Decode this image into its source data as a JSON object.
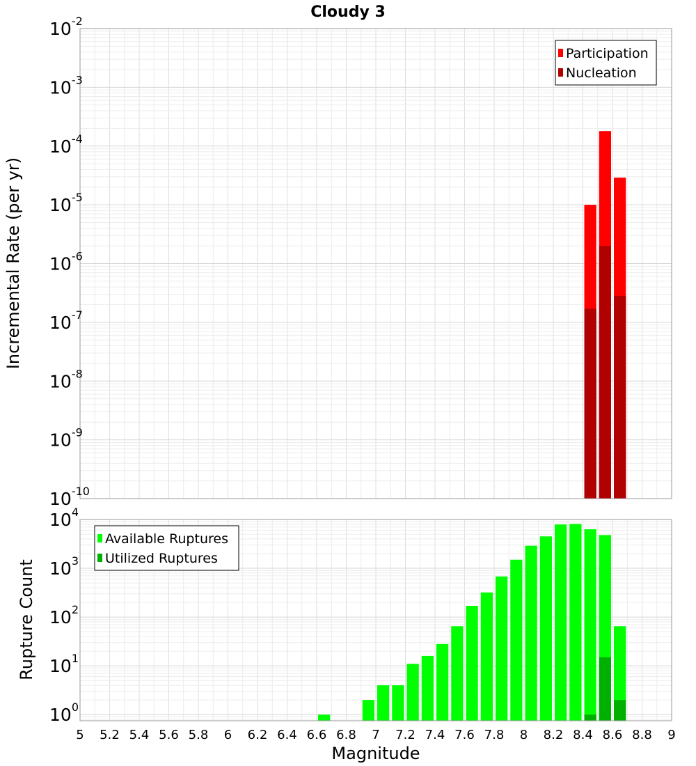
{
  "chart_data": [
    {
      "type": "bar",
      "title": "Cloudy 3",
      "xlabel": "Magnitude",
      "ylabel": "Incremental Rate (per yr)",
      "yscale": "log",
      "xlim": [
        5,
        9
      ],
      "ylim": [
        1e-10,
        0.01
      ],
      "y_ticks": [
        {
          "base": "10",
          "exp": "-10"
        },
        {
          "base": "10",
          "exp": "-9"
        },
        {
          "base": "10",
          "exp": "-8"
        },
        {
          "base": "10",
          "exp": "-7"
        },
        {
          "base": "10",
          "exp": "-6"
        },
        {
          "base": "10",
          "exp": "-5"
        },
        {
          "base": "10",
          "exp": "-4"
        },
        {
          "base": "10",
          "exp": "-3"
        },
        {
          "base": "10",
          "exp": "-2"
        }
      ],
      "grid": true,
      "legend_position": "top-right",
      "series": [
        {
          "name": "Participation",
          "color": "#ff0000",
          "x": [
            8.45,
            8.55,
            8.65
          ],
          "values": [
            1e-05,
            0.00018,
            2.9e-05
          ]
        },
        {
          "name": "Nucleation",
          "color": "#b00000",
          "x": [
            8.45,
            8.55,
            8.65
          ],
          "values": [
            1.7e-07,
            2e-06,
            2.8e-07
          ]
        }
      ]
    },
    {
      "type": "bar",
      "xlabel": "Magnitude",
      "ylabel": "Rupture Count",
      "yscale": "log",
      "xlim": [
        5,
        9
      ],
      "ylim": [
        0.75,
        10000
      ],
      "x_ticks": [
        "5",
        "5.2",
        "5.4",
        "5.6",
        "5.8",
        "6",
        "6.2",
        "6.4",
        "6.6",
        "6.8",
        "7",
        "7.2",
        "7.4",
        "7.6",
        "7.8",
        "8",
        "8.2",
        "8.4",
        "8.6",
        "8.8",
        "9"
      ],
      "y_ticks": [
        {
          "base": "10",
          "exp": "0"
        },
        {
          "base": "10",
          "exp": "1"
        },
        {
          "base": "10",
          "exp": "2"
        },
        {
          "base": "10",
          "exp": "3"
        },
        {
          "base": "10",
          "exp": "4"
        }
      ],
      "grid": true,
      "legend_position": "top-left",
      "series": [
        {
          "name": "Available Ruptures",
          "color": "#00ff00",
          "x": [
            6.65,
            6.95,
            7.05,
            7.15,
            7.25,
            7.35,
            7.45,
            7.55,
            7.65,
            7.75,
            7.85,
            7.95,
            8.05,
            8.15,
            8.25,
            8.35,
            8.45,
            8.55,
            8.65
          ],
          "values": [
            1,
            2,
            4,
            4,
            11,
            16,
            28,
            65,
            170,
            320,
            680,
            1500,
            2900,
            4500,
            7900,
            8100,
            6300,
            4800,
            65
          ]
        },
        {
          "name": "Utilized Ruptures",
          "color": "#00b000",
          "x": [
            8.45,
            8.55,
            8.65
          ],
          "values": [
            1,
            15,
            2
          ]
        }
      ]
    }
  ]
}
